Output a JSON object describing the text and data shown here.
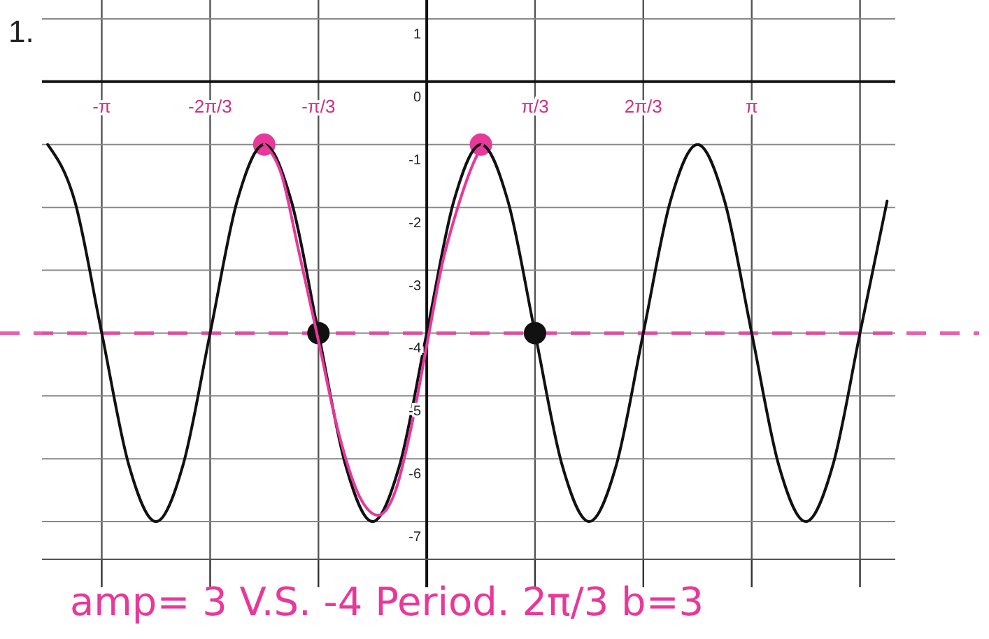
{
  "chart_data": {
    "type": "line",
    "title": "1.",
    "xlim": [
      -3.72,
      4.53
    ],
    "ylim": [
      -7.6,
      1.3
    ],
    "xticks": [
      {
        "value": -3.142,
        "label": "-π"
      },
      {
        "value": -2.094,
        "label": "-2π/3"
      },
      {
        "value": -1.047,
        "label": "-π/3"
      },
      {
        "value": 1.047,
        "label": "π/3"
      },
      {
        "value": 2.094,
        "label": "2π/3"
      },
      {
        "value": 3.142,
        "label": "π"
      },
      {
        "value": 4.189,
        "label": null
      }
    ],
    "yticks": [
      1,
      0,
      -1,
      -2,
      -3,
      -4,
      -5,
      -6,
      -7
    ],
    "grid": true,
    "line_style": "solid",
    "series": [
      {
        "color": "#111111",
        "x": [
          -3.665,
          -3.403,
          -3.142,
          -2.88,
          -2.618,
          -2.356,
          -2.094,
          -1.833,
          -1.571,
          -1.309,
          -1.047,
          -0.785,
          -0.524,
          -0.262,
          0,
          0.262,
          0.524,
          0.785,
          1.047,
          1.309,
          1.571,
          1.833,
          2.094,
          2.356,
          2.618,
          2.88,
          3.142,
          3.403,
          3.665,
          3.927,
          4.189,
          4.451
        ],
        "values": [
          -1,
          -1.9,
          -4,
          -6.1,
          -7,
          -6.1,
          -4,
          -1.9,
          -1,
          -1.9,
          -4,
          -6.1,
          -7,
          -6.1,
          -4,
          -1.9,
          -1,
          -1.9,
          -4,
          -6.1,
          -7,
          -6.1,
          -4,
          -1.9,
          -1,
          -1.9,
          -4,
          -6.1,
          -7,
          -6.1,
          -4,
          -1.9
        ]
      },
      {
        "color": "#e8389a",
        "x": [
          -1.571,
          -1.4,
          -1.25,
          -1.05,
          -0.85,
          -0.65,
          -0.47,
          -0.3,
          -0.15,
          0,
          0.15,
          0.3,
          0.45,
          0.54
        ],
        "values": [
          -1,
          -1.5,
          -2.6,
          -4.1,
          -5.6,
          -6.6,
          -6.9,
          -6.5,
          -5.5,
          -4.2,
          -2.9,
          -2,
          -1.3,
          -1
        ]
      },
      {
        "type": "scatter",
        "marker": "circle",
        "color": "#e8389a",
        "x": [
          -1.571,
          0.524
        ],
        "values": [
          -1,
          -1
        ]
      },
      {
        "type": "scatter",
        "marker": "circle",
        "color": "#111111",
        "x": [
          -1.047,
          1.047
        ],
        "values": [
          -4,
          -4
        ]
      }
    ],
    "ref_lines": [
      {
        "axis": "y",
        "value": -4,
        "color": "#e8389a",
        "line_style": "dashed"
      }
    ],
    "annotations": [
      "amp= 3 V.S. -4 Period. 2π/3 b=3"
    ]
  }
}
